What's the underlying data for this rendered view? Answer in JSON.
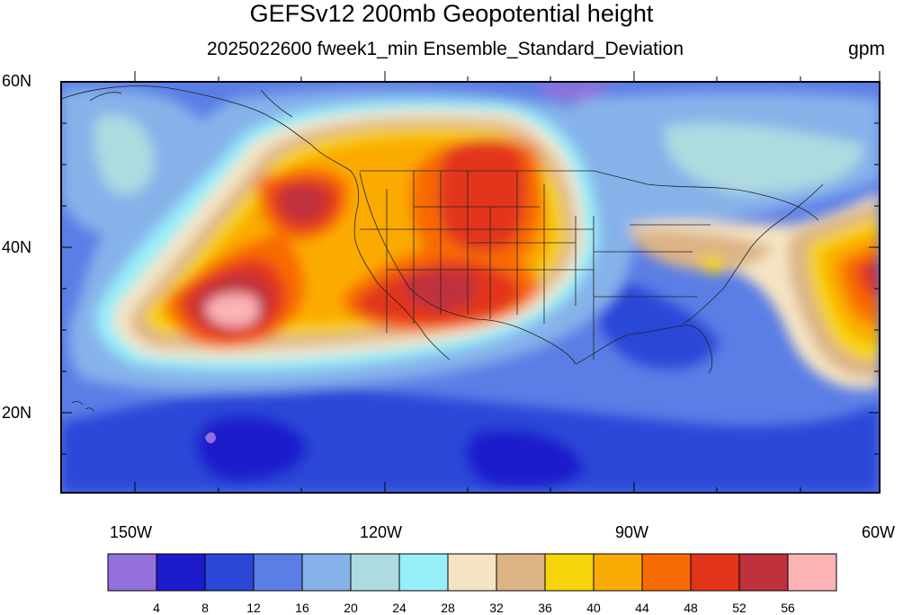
{
  "title": "GEFSv12 200mb Geopotential height",
  "subtitle": "2025022600 fweek1_min Ensemble_Standard_Deviation",
  "units": "gpm",
  "map": {
    "lon_range": [
      -160,
      -59
    ],
    "lat_range": [
      10,
      60
    ],
    "lat_labels": [
      "60N",
      "40N",
      "20N"
    ],
    "lon_labels": [
      "150W",
      "120W",
      "90W",
      "60W"
    ]
  },
  "colorbar": {
    "levels": [
      "4",
      "8",
      "12",
      "16",
      "20",
      "24",
      "28",
      "32",
      "36",
      "40",
      "44",
      "48",
      "52",
      "56"
    ],
    "colors": [
      "#9370db",
      "#1c1ccc",
      "#2a47d8",
      "#5b7ee6",
      "#86b2ea",
      "#aedbe0",
      "#97effa",
      "#f5e4c3",
      "#dcb486",
      "#f7d40c",
      "#fbab05",
      "#f86a03",
      "#e2341a",
      "#bf313d",
      "#fdb4b7"
    ]
  }
}
